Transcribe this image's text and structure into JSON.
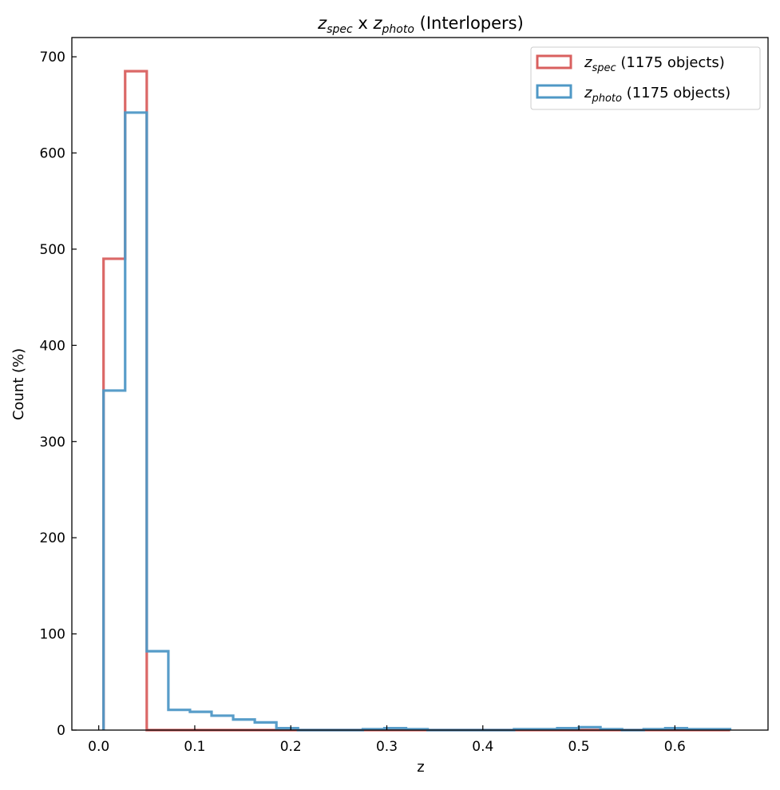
{
  "chart_data": {
    "type": "histogram",
    "title": {
      "var1": "z",
      "sub1": "spec",
      "sep": "x",
      "var2": "z",
      "sub2": "photo",
      "suffix": "(Interlopers)"
    },
    "xlabel": "z",
    "ylabel": "Count (%)",
    "xlim": [
      -0.028,
      0.697
    ],
    "ylim": [
      0,
      720
    ],
    "xticks": [
      0.0,
      0.1,
      0.2,
      0.3,
      0.4,
      0.5,
      0.6
    ],
    "xtick_labels": [
      "0.0",
      "0.1",
      "0.2",
      "0.3",
      "0.4",
      "0.5",
      "0.6"
    ],
    "yticks": [
      0,
      100,
      200,
      300,
      400,
      500,
      600,
      700
    ],
    "ytick_labels": [
      "0",
      "100",
      "200",
      "300",
      "400",
      "500",
      "600",
      "700"
    ],
    "grid": false,
    "legend_position": "top-right",
    "series": [
      {
        "key": "spec",
        "legend_var": "z",
        "legend_sub": "spec",
        "legend_suffix": "(1175 objects)",
        "color": "#d9605f",
        "bin_edges": [
          0.005,
          0.0275,
          0.05,
          0.0725,
          0.095,
          0.1175,
          0.14,
          0.1625,
          0.185,
          0.2075,
          0.23,
          0.2525,
          0.275,
          0.2975,
          0.32,
          0.3425,
          0.365,
          0.3875,
          0.41,
          0.4325,
          0.455,
          0.4775,
          0.5,
          0.5225,
          0.545,
          0.5675,
          0.59,
          0.6125,
          0.635,
          0.6575
        ],
        "counts": [
          490,
          685,
          0,
          0,
          0,
          0,
          0,
          0,
          0,
          0,
          0,
          0,
          0,
          0,
          0,
          0,
          0,
          0,
          0,
          0,
          0,
          0,
          0,
          0,
          0,
          0,
          0,
          0,
          0
        ]
      },
      {
        "key": "photo",
        "legend_var": "z",
        "legend_sub": "photo",
        "legend_suffix": "(1175 objects)",
        "color": "#4f98c6",
        "bin_edges": [
          0.005,
          0.0275,
          0.05,
          0.0725,
          0.095,
          0.1175,
          0.14,
          0.1625,
          0.185,
          0.2075,
          0.23,
          0.2525,
          0.275,
          0.2975,
          0.32,
          0.3425,
          0.365,
          0.3875,
          0.41,
          0.4325,
          0.455,
          0.4775,
          0.5,
          0.5225,
          0.545,
          0.5675,
          0.59,
          0.6125,
          0.635,
          0.6575
        ],
        "counts": [
          353,
          642,
          82,
          21,
          19,
          15,
          11,
          8,
          2,
          0,
          0,
          0,
          1,
          2,
          1,
          0,
          0,
          0,
          0,
          1,
          1,
          2,
          3,
          1,
          0,
          1,
          2,
          1,
          1
        ]
      }
    ]
  }
}
